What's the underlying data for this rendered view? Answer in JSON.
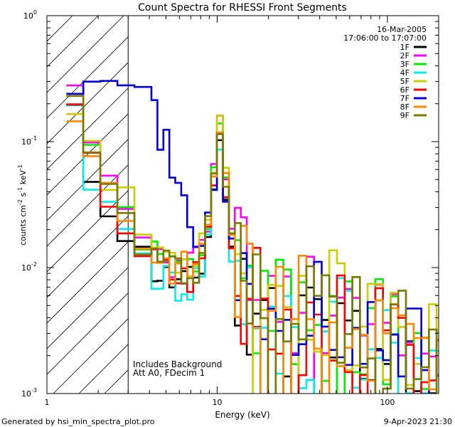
{
  "chart_data": {
    "type": "line",
    "title": "Count Spectra for RHESSI Front Segments",
    "xlabel": "Energy (keV)",
    "ylabel": {
      "base": "counts cm",
      "e1": "-2",
      "mid1": " s",
      "e2": "-1",
      "mid2": " keV",
      "e3": "-1"
    },
    "x_scale": "log",
    "y_scale": "log",
    "xlim": [
      1,
      200
    ],
    "ylim": [
      0.001,
      1
    ],
    "x_ticks": [
      {
        "v": 1,
        "label": "1"
      },
      {
        "v": 10,
        "label": "10"
      },
      {
        "v": 100,
        "label": "100"
      }
    ],
    "y_ticks": [
      {
        "v": 0.001,
        "base": "10",
        "exp": "-3"
      },
      {
        "v": 0.01,
        "base": "10",
        "exp": "-2"
      },
      {
        "v": 0.1,
        "base": "10",
        "exp": "-1"
      },
      {
        "v": 1,
        "base": "10",
        "exp": "0"
      }
    ],
    "date": "16-Mar-2005",
    "time_range": "17:06:00 to 17:07:00",
    "note_lines": [
      "Includes Background",
      "Att A0, FDecim 1"
    ],
    "excluded_region_max_kev": 3,
    "footer_left": "Generated by hsi_min_spectra_plot.pro",
    "footer_right": "9-Apr-2023 21:30",
    "series": [
      {
        "name": "1F",
        "color": "#000000",
        "offset": 0.82,
        "seed": 11
      },
      {
        "name": "2F",
        "color": "#ff00ff",
        "offset": 1.15,
        "seed": 23
      },
      {
        "name": "3F",
        "color": "#00ee00",
        "offset": 1.0,
        "seed": 37
      },
      {
        "name": "4F",
        "color": "#00eeee",
        "offset": 0.78,
        "seed": 41
      },
      {
        "name": "5F",
        "color": "#cccc00",
        "offset": 1.3,
        "seed": 53
      },
      {
        "name": "6F",
        "color": "#ff0000",
        "offset": 0.95,
        "seed": 67
      },
      {
        "name": "7F",
        "color": "#0000dd",
        "offset": 1.0,
        "seed": 71,
        "profile": "raised"
      },
      {
        "name": "8F",
        "color": "#ff8800",
        "offset": 1.08,
        "seed": 83
      },
      {
        "name": "9F",
        "color": "#7a7a00",
        "offset": 1.05,
        "seed": 97
      }
    ]
  }
}
